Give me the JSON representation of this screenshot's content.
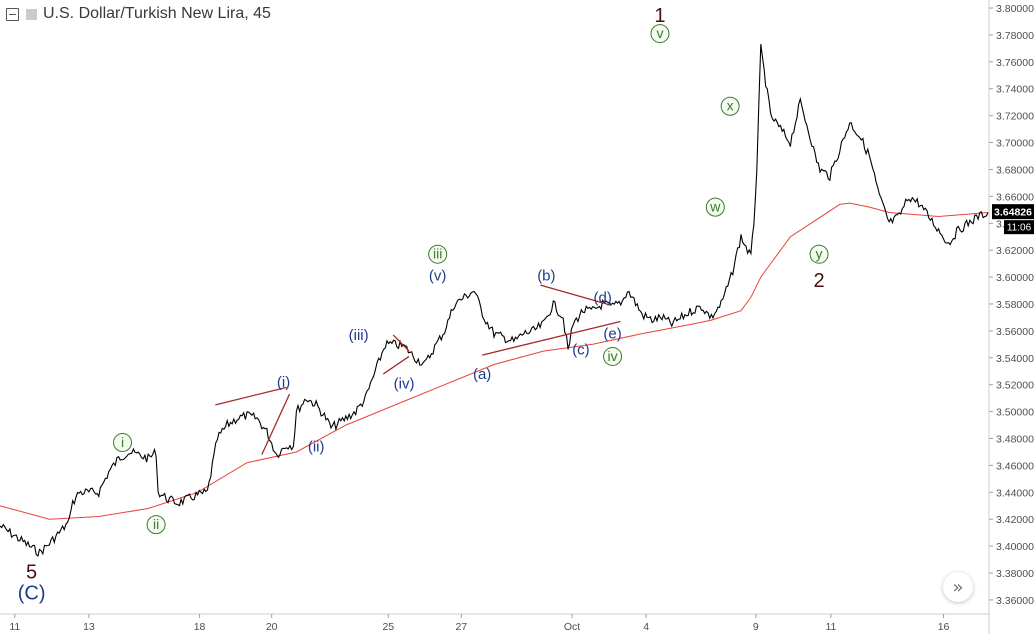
{
  "header": {
    "title": "U.S. Dollar/Turkish New Lira, 45",
    "collapse_icon": "minus-square-icon",
    "symbol_icon": "square-icon"
  },
  "price_badge": {
    "value": "3.64826",
    "countdown": "11:06",
    "color": "#000000"
  },
  "nav_button": {
    "icon": "double-chevron-right-icon",
    "glyph": "»"
  },
  "colors": {
    "candles": "#000000",
    "moving_average": "#e8443a",
    "trendline": "#a52a2a",
    "label_blue": "#1f3b8c",
    "label_green": "#3a7a2a",
    "label_dark": "#4a1010"
  },
  "chart_data": {
    "type": "line",
    "title": "U.S. Dollar/Turkish New Lira, 45",
    "xlabel": "",
    "ylabel": "",
    "x_ticks": [
      "11",
      "13",
      "18",
      "20",
      "25",
      "27",
      "Oct",
      "4",
      "9",
      "11",
      "16"
    ],
    "y_ticks": [
      "3.80000",
      "3.78000",
      "3.76000",
      "3.74000",
      "3.72000",
      "3.70000",
      "3.68000",
      "3.66000",
      "3.64000",
      "3.62000",
      "3.60000",
      "3.58000",
      "3.56000",
      "3.54000",
      "3.52000",
      "3.50000",
      "3.48000",
      "3.46000",
      "3.44000",
      "3.42000",
      "3.40000",
      "3.38000",
      "3.36000"
    ],
    "ylim": [
      3.354,
      3.803
    ],
    "x_index_range": [
      0,
      100
    ],
    "x_tick_index": [
      1.5,
      9.0,
      20.2,
      27.5,
      39.3,
      46.7,
      57.9,
      65.4,
      76.5,
      84.1,
      95.5
    ],
    "grid": false,
    "legend": "none",
    "series": [
      {
        "kind": "price",
        "x": [
          0,
          1,
          2,
          3,
          4,
          5,
          6,
          7,
          7.2,
          8,
          9,
          10,
          11,
          12,
          13,
          14,
          15,
          15.8,
          16,
          17,
          18,
          19,
          20,
          21,
          22,
          23,
          24,
          25,
          26,
          27,
          28,
          29,
          29.7,
          30,
          31,
          32,
          33,
          33.5,
          34,
          35,
          36,
          37,
          38,
          39,
          40,
          41,
          42,
          43,
          44,
          45,
          46,
          47,
          48,
          49,
          50,
          51,
          52,
          53,
          54,
          55,
          56,
          57,
          57.5,
          58,
          59,
          60,
          61,
          62,
          63,
          63.5,
          64,
          65,
          66,
          67,
          68,
          69,
          70,
          71,
          72,
          73,
          74,
          75,
          76,
          76.3,
          76.6,
          77,
          78,
          79,
          80,
          81,
          82,
          82.5,
          83,
          84,
          85,
          86,
          87,
          88,
          89,
          90,
          91,
          92,
          93,
          94,
          95,
          95.5,
          96,
          97,
          98,
          99,
          100
        ],
        "y": [
          3.415,
          3.41,
          3.405,
          3.4,
          3.395,
          3.402,
          3.41,
          3.418,
          3.43,
          3.44,
          3.44,
          3.44,
          3.455,
          3.465,
          3.47,
          3.468,
          3.465,
          3.47,
          3.44,
          3.435,
          3.432,
          3.435,
          3.438,
          3.44,
          3.48,
          3.49,
          3.495,
          3.497,
          3.495,
          3.485,
          3.468,
          3.475,
          3.475,
          3.5,
          3.51,
          3.505,
          3.495,
          3.488,
          3.49,
          3.495,
          3.5,
          3.51,
          3.53,
          3.55,
          3.55,
          3.548,
          3.54,
          3.535,
          3.548,
          3.56,
          3.58,
          3.585,
          3.59,
          3.57,
          3.558,
          3.555,
          3.552,
          3.558,
          3.56,
          3.565,
          3.58,
          3.57,
          3.545,
          3.565,
          3.575,
          3.575,
          3.58,
          3.578,
          3.582,
          3.59,
          3.585,
          3.572,
          3.568,
          3.57,
          3.565,
          3.57,
          3.575,
          3.578,
          3.57,
          3.58,
          3.6,
          3.63,
          3.615,
          3.64,
          3.68,
          3.77,
          3.72,
          3.71,
          3.7,
          3.73,
          3.705,
          3.69,
          3.68,
          3.675,
          3.695,
          3.715,
          3.705,
          3.69,
          3.66,
          3.64,
          3.645,
          3.66,
          3.655,
          3.645,
          3.635,
          3.63,
          3.625,
          3.635,
          3.64,
          3.645,
          3.648
        ]
      },
      {
        "kind": "moving_average",
        "x": [
          0,
          5,
          10,
          15,
          20,
          25,
          30,
          35,
          40,
          45,
          50,
          55,
          60,
          65,
          70,
          72,
          75,
          76,
          77,
          80,
          85,
          86,
          88,
          90,
          95,
          100
        ],
        "y": [
          3.43,
          3.42,
          3.422,
          3.428,
          3.44,
          3.462,
          3.47,
          3.49,
          3.505,
          3.52,
          3.535,
          3.545,
          3.55,
          3.558,
          3.565,
          3.568,
          3.575,
          3.585,
          3.6,
          3.63,
          3.654,
          3.655,
          3.652,
          3.648,
          3.645,
          3.648
        ]
      }
    ],
    "annotations": [
      {
        "text": "5",
        "x": 3.2,
        "y": 3.381,
        "style": "dark"
      },
      {
        "text": "(C)",
        "x": 3.2,
        "y": 3.364,
        "style": "blue"
      },
      {
        "text": "i",
        "x": 12.4,
        "y": 3.477,
        "style": "green"
      },
      {
        "text": "ii",
        "x": 15.8,
        "y": 3.416,
        "style": "green"
      },
      {
        "text": "(i)",
        "x": 28.7,
        "y": 3.522,
        "style": "blue"
      },
      {
        "text": "(ii)",
        "x": 32.0,
        "y": 3.474,
        "style": "blue"
      },
      {
        "text": "(iii)",
        "x": 36.3,
        "y": 3.557,
        "style": "blue"
      },
      {
        "text": "(iv)",
        "x": 40.9,
        "y": 3.521,
        "style": "blue"
      },
      {
        "text": "iii",
        "x": 44.3,
        "y": 3.617,
        "style": "green"
      },
      {
        "text": "(v)",
        "x": 44.3,
        "y": 3.601,
        "style": "blue"
      },
      {
        "text": "(a)",
        "x": 48.8,
        "y": 3.528,
        "style": "blue"
      },
      {
        "text": "(b)",
        "x": 55.3,
        "y": 3.601,
        "style": "blue"
      },
      {
        "text": "(c)",
        "x": 58.8,
        "y": 3.546,
        "style": "blue"
      },
      {
        "text": "(d)",
        "x": 61.0,
        "y": 3.585,
        "style": "blue"
      },
      {
        "text": "(e)",
        "x": 62.0,
        "y": 3.558,
        "style": "blue"
      },
      {
        "text": "iv",
        "x": 62.0,
        "y": 3.541,
        "style": "green"
      },
      {
        "text": "1",
        "x": 66.8,
        "y": 3.795,
        "style": "dark"
      },
      {
        "text": "v",
        "x": 66.8,
        "y": 3.781,
        "style": "green"
      },
      {
        "text": "w",
        "x": 72.4,
        "y": 3.652,
        "style": "green"
      },
      {
        "text": "x",
        "x": 73.9,
        "y": 3.727,
        "style": "green"
      },
      {
        "text": "y",
        "x": 82.9,
        "y": 3.617,
        "style": "green"
      },
      {
        "text": "2",
        "x": 82.9,
        "y": 3.598,
        "style": "dark"
      }
    ],
    "trendlines": [
      {
        "x1": 21.8,
        "y1": 3.505,
        "x2": 29.0,
        "y2": 3.518
      },
      {
        "x1": 26.5,
        "y1": 3.468,
        "x2": 29.3,
        "y2": 3.513
      },
      {
        "x1": 38.8,
        "y1": 3.528,
        "x2": 41.4,
        "y2": 3.541
      },
      {
        "x1": 39.8,
        "y1": 3.557,
        "x2": 41.4,
        "y2": 3.545
      },
      {
        "x1": 48.8,
        "y1": 3.542,
        "x2": 62.8,
        "y2": 3.567
      },
      {
        "x1": 54.7,
        "y1": 3.594,
        "x2": 61.9,
        "y2": 3.579
      }
    ]
  }
}
